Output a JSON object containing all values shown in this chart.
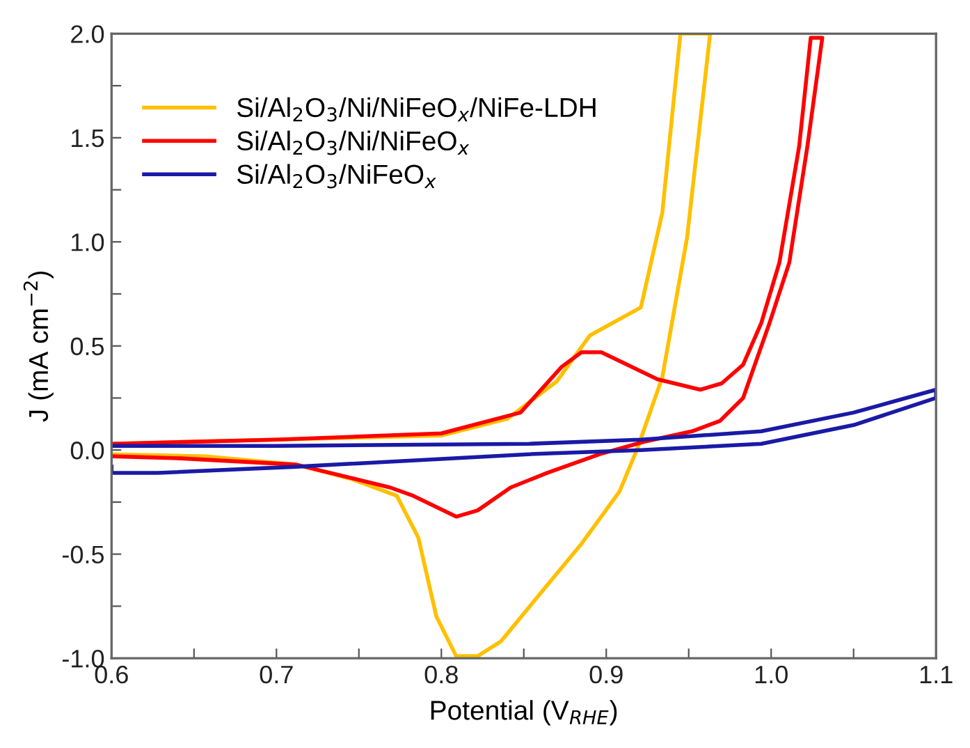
{
  "chart_data": {
    "type": "line",
    "xlabel": "Potential (V$_{RHE}$)",
    "ylabel": "J (mA cm$^{−2}$)",
    "xlim": [
      0.6,
      1.1
    ],
    "ylim": [
      -1.0,
      2.0
    ],
    "xticks": [
      {
        "value": 0.6,
        "label": "0.6"
      },
      {
        "value": 0.65,
        "label": null
      },
      {
        "value": 0.7,
        "label": "0.7"
      },
      {
        "value": 0.75,
        "label": null
      },
      {
        "value": 0.8,
        "label": "0.8"
      },
      {
        "value": 0.85,
        "label": null
      },
      {
        "value": 0.9,
        "label": "0.9"
      },
      {
        "value": 0.95,
        "label": null
      },
      {
        "value": 1.0,
        "label": "1.0"
      },
      {
        "value": 1.05,
        "label": null
      },
      {
        "value": 1.1,
        "label": "1.1"
      }
    ],
    "yticks": [
      {
        "value": -1.0,
        "label": "-1.0"
      },
      {
        "value": -0.75,
        "label": null
      },
      {
        "value": -0.5,
        "label": "-0.5"
      },
      {
        "value": -0.25,
        "label": null
      },
      {
        "value": 0.0,
        "label": "0.0"
      },
      {
        "value": 0.25,
        "label": null
      },
      {
        "value": 0.5,
        "label": "0.5"
      },
      {
        "value": 0.75,
        "label": null
      },
      {
        "value": 1.0,
        "label": "1.0"
      },
      {
        "value": 1.25,
        "label": null
      },
      {
        "value": 1.5,
        "label": "1.5"
      },
      {
        "value": 1.75,
        "label": null
      },
      {
        "value": 2.0,
        "label": "2.0"
      }
    ],
    "grid": false,
    "legend": "top left",
    "marker": "none",
    "line_style": "solid",
    "series": [
      {
        "name": "Si/Al$_{2}$O$_{3}$/Ni/NiFeO$_{x}$/NiFe-LDH",
        "color": "#ffc000",
        "x": [
          0.6,
          0.7,
          0.8,
          0.84,
          0.87,
          0.89,
          0.921,
          0.934,
          0.945,
          0.963,
          0.949,
          0.934,
          0.919,
          0.908,
          0.885,
          0.862,
          0.836,
          0.822,
          0.809,
          0.797,
          0.786,
          0.773,
          0.746,
          0.712,
          0.657,
          0.6
        ],
        "values": [
          0.03,
          0.05,
          0.07,
          0.15,
          0.33,
          0.55,
          0.685,
          1.14,
          2.0,
          2.0,
          1.02,
          0.35,
          0.01,
          -0.2,
          -0.45,
          -0.67,
          -0.92,
          -0.99,
          -0.99,
          -0.8,
          -0.42,
          -0.22,
          -0.14,
          -0.07,
          -0.03,
          -0.02
        ]
      },
      {
        "name": "Si/Al$_{2}$O$_{3}$/Ni/NiFeO$_{x}$",
        "color": "#ff0000",
        "x": [
          0.6,
          0.7,
          0.8,
          0.848,
          0.873,
          0.885,
          0.897,
          0.931,
          0.957,
          0.97,
          0.983,
          0.994,
          1.005,
          1.017,
          1.024,
          1.031,
          1.022,
          1.011,
          0.999,
          0.983,
          0.969,
          0.952,
          0.923,
          0.896,
          0.864,
          0.842,
          0.822,
          0.809,
          0.783,
          0.769,
          0.712,
          0.642,
          0.6
        ],
        "values": [
          0.03,
          0.05,
          0.08,
          0.18,
          0.4,
          0.47,
          0.47,
          0.34,
          0.29,
          0.32,
          0.41,
          0.61,
          0.9,
          1.46,
          1.98,
          1.98,
          1.46,
          0.9,
          0.61,
          0.25,
          0.14,
          0.09,
          0.04,
          -0.02,
          -0.11,
          -0.18,
          -0.29,
          -0.32,
          -0.22,
          -0.18,
          -0.07,
          -0.04,
          -0.03
        ]
      },
      {
        "name": "Si/Al$_{2}$O$_{3}$/NiFeO$_{x}$",
        "color": "#1a1aa6",
        "x": [
          0.6,
          0.7,
          0.853,
          0.921,
          0.994,
          1.05,
          1.1,
          1.1,
          1.05,
          0.994,
          0.921,
          0.853,
          0.712,
          0.628,
          0.6,
          0.6
        ],
        "values": [
          0.02,
          0.02,
          0.03,
          0.05,
          0.09,
          0.18,
          0.29,
          0.25,
          0.12,
          0.03,
          0.0,
          -0.02,
          -0.08,
          -0.11,
          -0.11,
          -0.08
        ]
      }
    ]
  }
}
